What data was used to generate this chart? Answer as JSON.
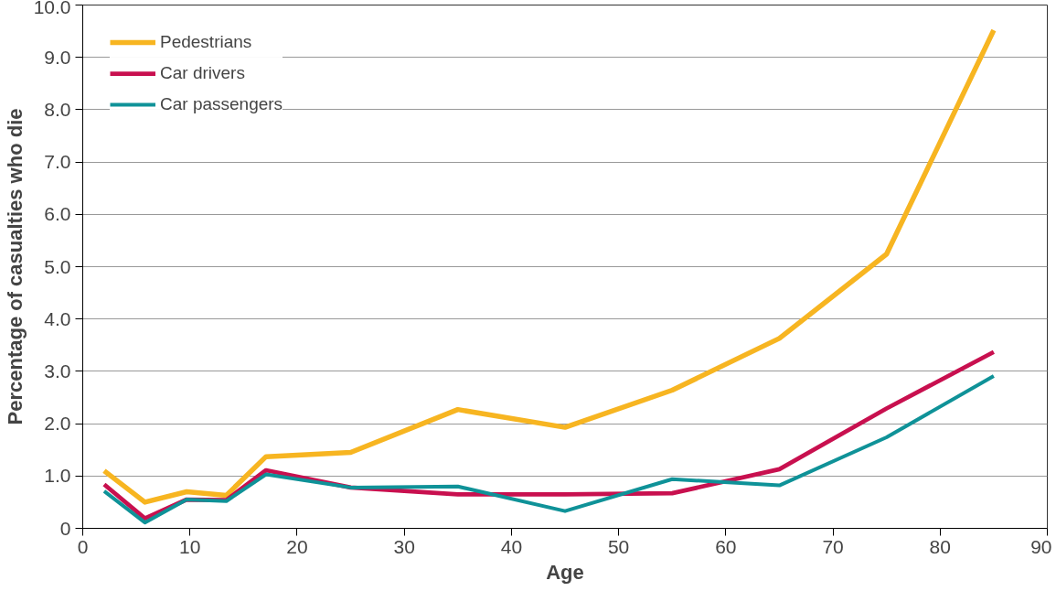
{
  "chart_data": {
    "type": "line",
    "xlabel": "Age",
    "ylabel": "Percentage of casualties who die",
    "x": [
      2,
      5.8,
      9.7,
      13.4,
      17.1,
      25,
      35,
      45,
      55,
      65,
      75,
      85
    ],
    "series": [
      {
        "name": "Pedestrians",
        "color": "#f7b521",
        "values": [
          1.1,
          0.5,
          0.7,
          0.63,
          1.37,
          1.45,
          2.27,
          1.93,
          2.64,
          3.63,
          5.24,
          9.52
        ]
      },
      {
        "name": "Car drivers",
        "color": "#c8104f",
        "values": [
          0.84,
          0.19,
          0.55,
          0.54,
          1.11,
          0.78,
          0.65,
          0.65,
          0.67,
          1.13,
          2.29,
          3.37
        ]
      },
      {
        "name": "Car passengers",
        "color": "#0f9298",
        "values": [
          0.71,
          0.11,
          0.55,
          0.52,
          1.03,
          0.78,
          0.8,
          0.33,
          0.94,
          0.82,
          1.74,
          2.91
        ]
      }
    ],
    "xlim": [
      0,
      90
    ],
    "xticks": [
      0,
      10,
      20,
      30,
      40,
      50,
      60,
      70,
      80,
      90
    ],
    "ylim": [
      0,
      10
    ],
    "yticks": [
      0,
      {
        "value": 1,
        "label": "1.0"
      },
      {
        "value": 2,
        "label": "2.0"
      },
      {
        "value": 3,
        "label": "3.0"
      },
      {
        "value": 4,
        "label": "4.0"
      },
      {
        "value": 5,
        "label": "5.0"
      },
      {
        "value": 6,
        "label": "6.0"
      },
      {
        "value": 7,
        "label": "7.0"
      },
      {
        "value": 8,
        "label": "8.0"
      },
      {
        "value": 9,
        "label": "9.0"
      },
      {
        "value": 10,
        "label": "10.0"
      }
    ],
    "grid": "y",
    "legend": "top left",
    "marker": "none",
    "line_style": "solid"
  }
}
